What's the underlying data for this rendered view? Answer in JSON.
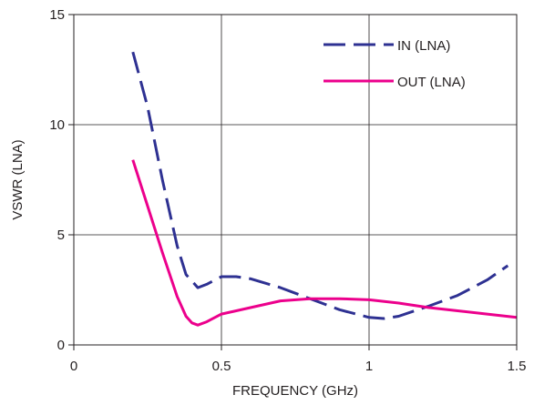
{
  "chart_data": {
    "type": "line",
    "title": "",
    "xlabel": "FREQUENCY (GHz)",
    "ylabel": "VSWR (LNA)",
    "xlim": [
      0,
      1.5
    ],
    "ylim": [
      0,
      15
    ],
    "x_ticks": [
      0,
      0.5,
      1,
      1.5
    ],
    "x_tick_labels": [
      "0",
      "0.5",
      "1",
      "1.5"
    ],
    "y_ticks": [
      0,
      5,
      10,
      15
    ],
    "y_tick_labels": [
      "0",
      "5",
      "10",
      "15"
    ],
    "grid": true,
    "legend_position": "top-right",
    "series": [
      {
        "name": "IN (LNA)",
        "color": "#2e3192",
        "style": "dashed",
        "x": [
          0.2,
          0.25,
          0.3,
          0.35,
          0.38,
          0.4,
          0.42,
          0.45,
          0.5,
          0.55,
          0.6,
          0.7,
          0.8,
          0.9,
          1.0,
          1.05,
          1.1,
          1.2,
          1.3,
          1.4,
          1.47
        ],
        "y": [
          13.3,
          10.8,
          7.5,
          4.5,
          3.2,
          2.9,
          2.6,
          2.75,
          3.1,
          3.1,
          3.0,
          2.6,
          2.1,
          1.6,
          1.25,
          1.2,
          1.3,
          1.75,
          2.25,
          2.95,
          3.6
        ]
      },
      {
        "name": "OUT (LNA)",
        "color": "#ec008c",
        "style": "solid",
        "x": [
          0.2,
          0.25,
          0.3,
          0.35,
          0.38,
          0.4,
          0.42,
          0.45,
          0.5,
          0.6,
          0.7,
          0.8,
          0.9,
          1.0,
          1.1,
          1.2,
          1.3,
          1.4,
          1.5
        ],
        "y": [
          8.4,
          6.3,
          4.2,
          2.2,
          1.3,
          1.0,
          0.9,
          1.05,
          1.4,
          1.7,
          2.0,
          2.1,
          2.1,
          2.05,
          1.9,
          1.7,
          1.55,
          1.4,
          1.25
        ]
      }
    ]
  }
}
